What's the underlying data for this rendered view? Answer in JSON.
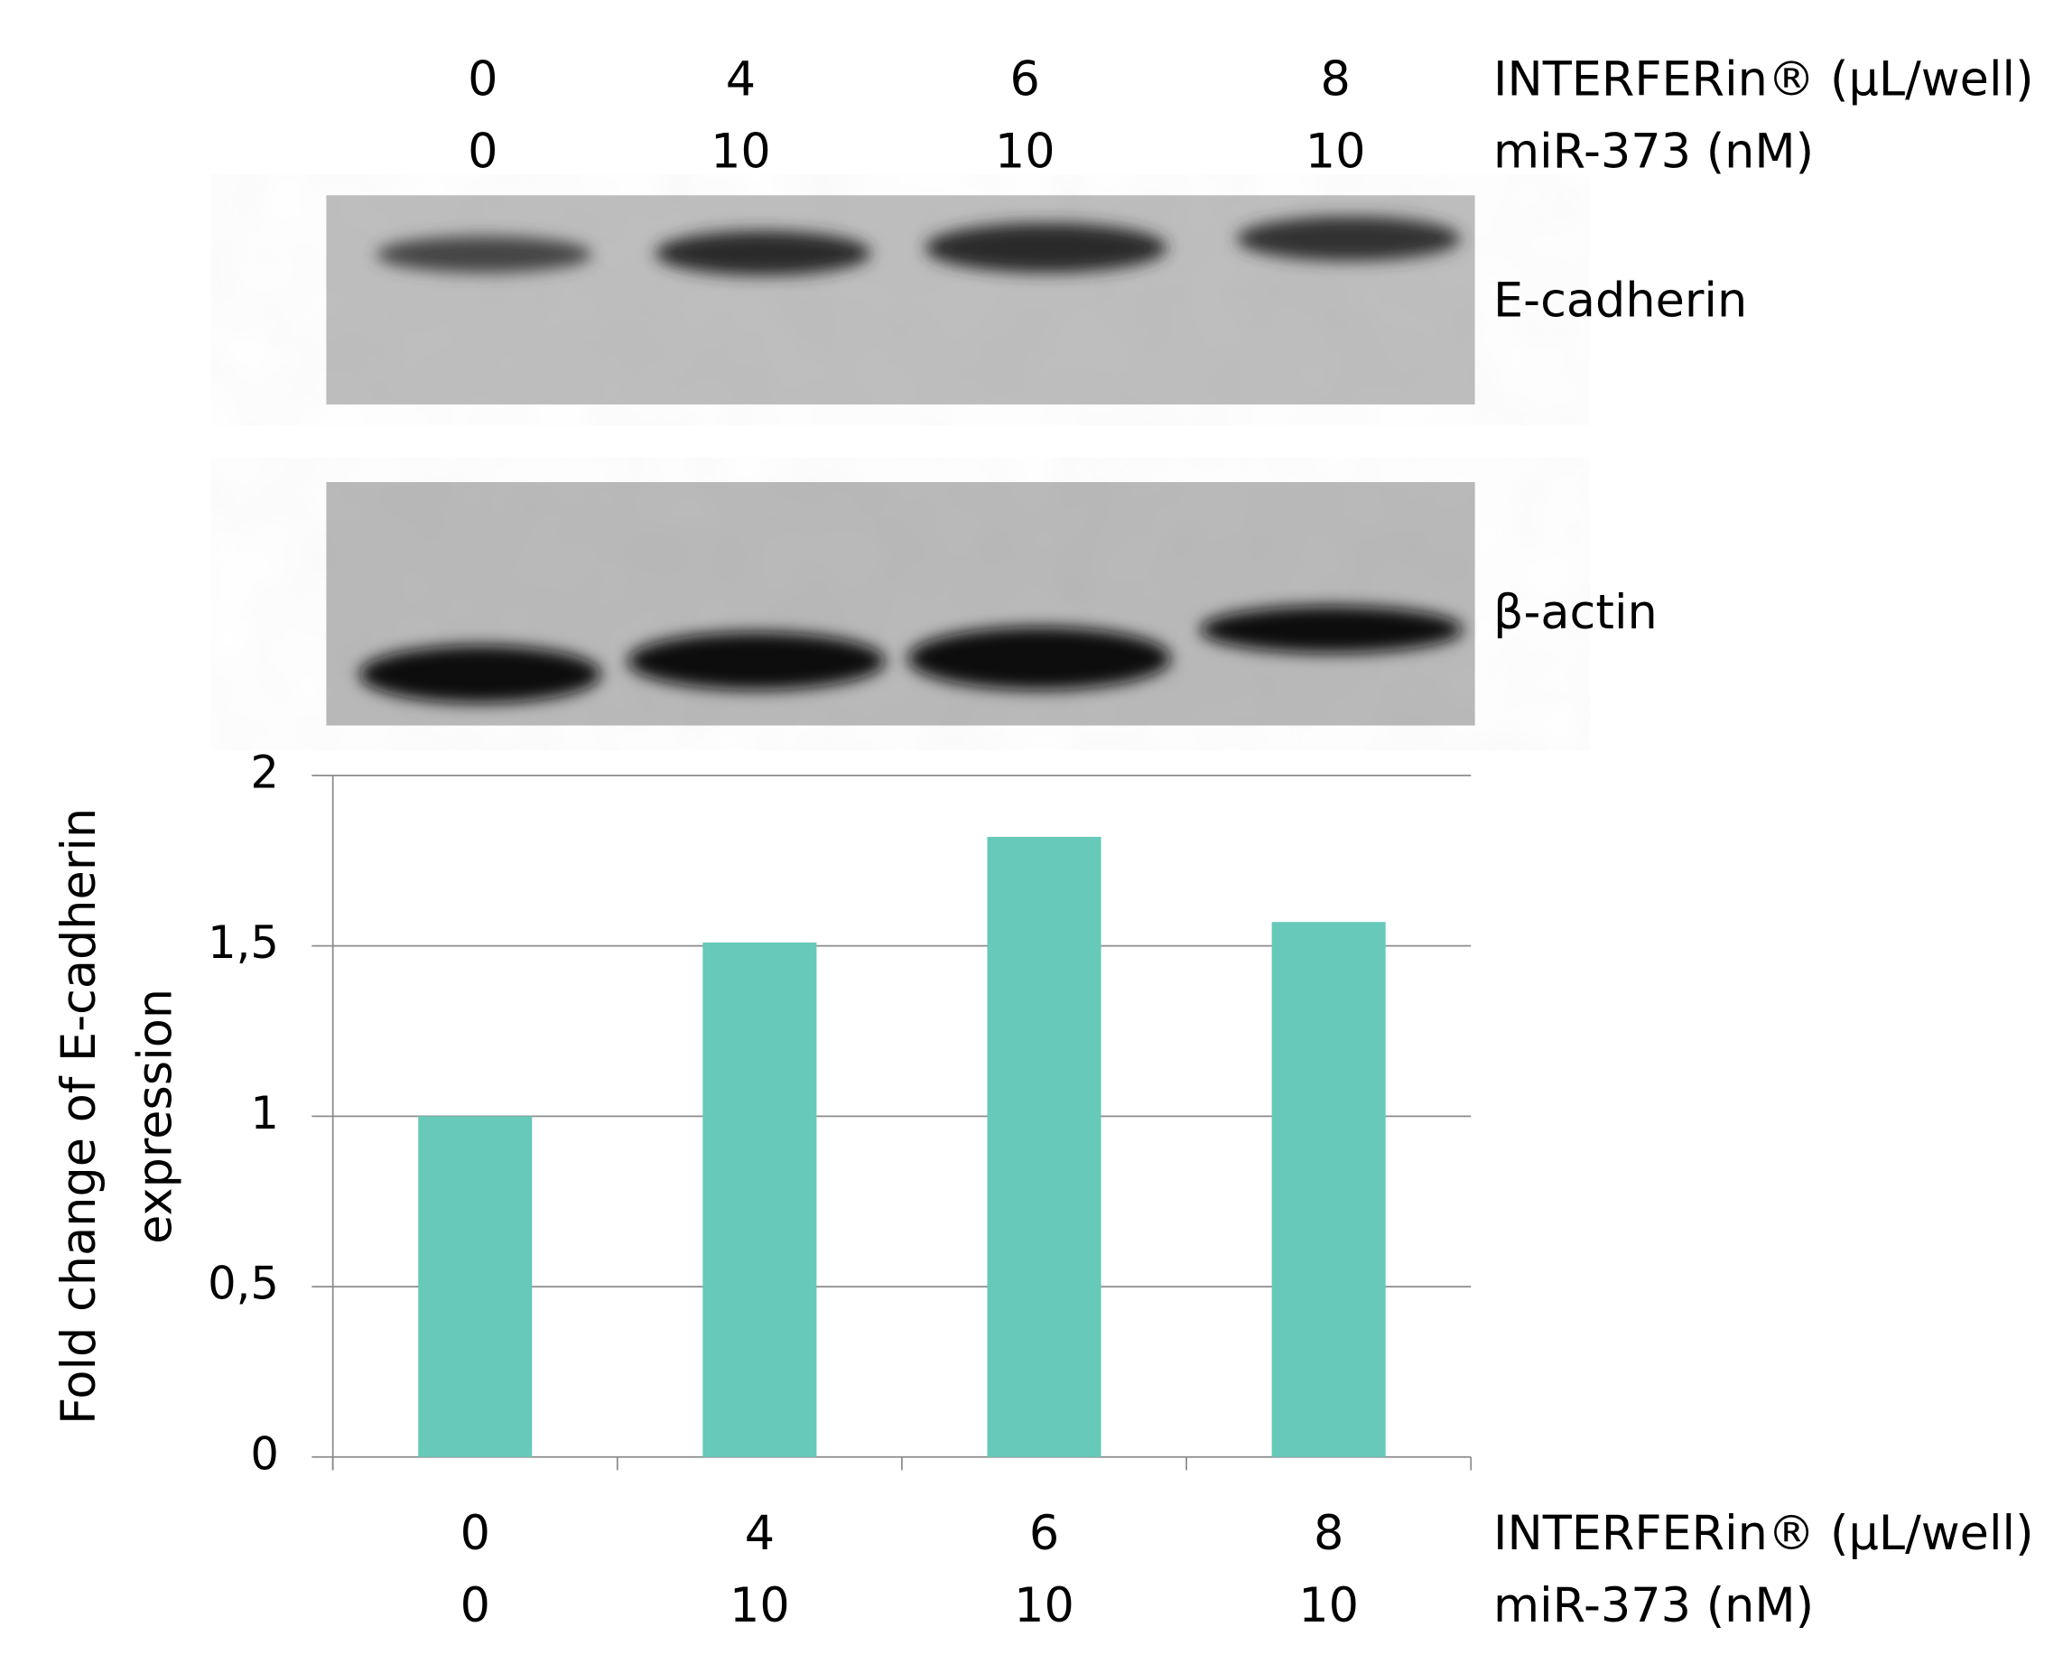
{
  "blot": {
    "bands": [
      "E-cadherin",
      "β-actin"
    ]
  },
  "chart_data": {
    "type": "bar",
    "ylabel": [
      "Fold change of E-cadherin",
      "expression"
    ],
    "category_rows": [
      "INTERFERin® (µL/well)",
      "miR-373 (nM)"
    ],
    "categories": [
      [
        "0",
        "0"
      ],
      [
        "4",
        "10"
      ],
      [
        "6",
        "10"
      ],
      [
        "8",
        "10"
      ]
    ],
    "values": [
      1.0,
      1.51,
      1.82,
      1.57
    ],
    "color": "#66c9b9",
    "ylim": [
      0,
      2
    ],
    "yticks": [
      0,
      {
        "value": 0.5,
        "label": "0,5"
      },
      1,
      {
        "value": 1.5,
        "label": "1,5"
      },
      2
    ],
    "grid": true
  }
}
